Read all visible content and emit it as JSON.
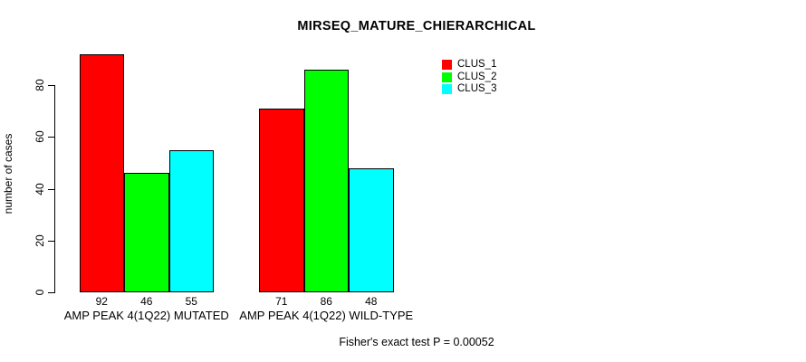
{
  "chart_data": {
    "type": "bar",
    "title": "MIRSEQ_MATURE_CHIERARCHICAL",
    "xlabel": "",
    "ylabel": "number of cases",
    "categories": [
      "AMP PEAK 4(1Q22) MUTATED",
      "AMP PEAK 4(1Q22) WILD-TYPE"
    ],
    "series": [
      {
        "name": "CLUS_1",
        "color": "#FF0000",
        "values": [
          92,
          71
        ]
      },
      {
        "name": "CLUS_2",
        "color": "#00FF00",
        "values": [
          46,
          86
        ]
      },
      {
        "name": "CLUS_3",
        "color": "#00FFFF",
        "values": [
          55,
          48
        ]
      }
    ],
    "bar_value_labels": [
      [
        92,
        46,
        55
      ],
      [
        71,
        86,
        48
      ]
    ],
    "yticks": [
      0,
      20,
      40,
      60,
      80
    ],
    "ylim": [
      0,
      92
    ],
    "grid": false,
    "legend_position": "top-right",
    "annotation": "Fisher's exact test P = 0.00052"
  },
  "colors": {
    "background": "#FFFFFF",
    "axis": "#000000",
    "text": "#000000"
  }
}
